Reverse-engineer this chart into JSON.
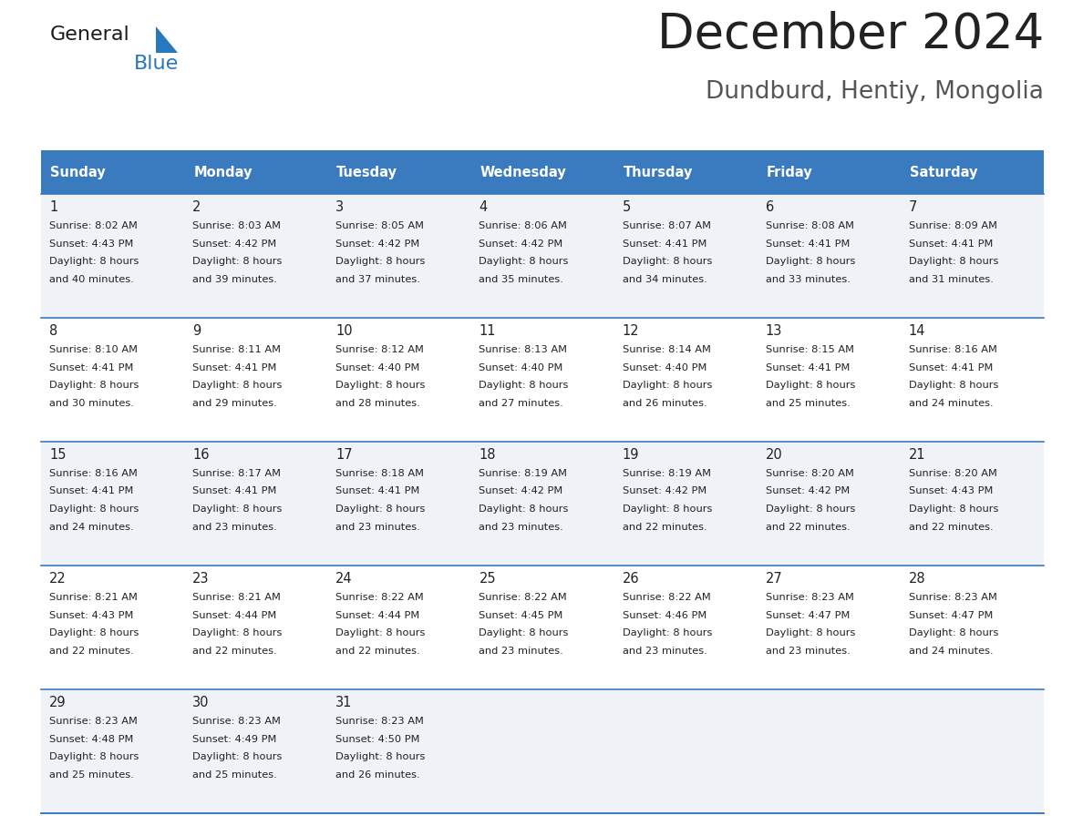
{
  "title": "December 2024",
  "subtitle": "Dundburd, Hentiy, Mongolia",
  "header_color": "#3a7abf",
  "header_text_color": "#ffffff",
  "days_of_week": [
    "Sunday",
    "Monday",
    "Tuesday",
    "Wednesday",
    "Thursday",
    "Friday",
    "Saturday"
  ],
  "bg_color_even": "#eff3f8",
  "bg_color_odd": "#ffffff",
  "divider_color": "#3a7abf",
  "cell_text_color": "#222222",
  "title_color": "#222222",
  "subtitle_color": "#555555",
  "logo_general_color": "#1a1a1a",
  "logo_blue_color": "#2878be",
  "calendar_data": [
    [
      {
        "day": 1,
        "sunrise": "8:02 AM",
        "sunset": "4:43 PM",
        "daylight": "8 hours and 40 minutes."
      },
      {
        "day": 2,
        "sunrise": "8:03 AM",
        "sunset": "4:42 PM",
        "daylight": "8 hours and 39 minutes."
      },
      {
        "day": 3,
        "sunrise": "8:05 AM",
        "sunset": "4:42 PM",
        "daylight": "8 hours and 37 minutes."
      },
      {
        "day": 4,
        "sunrise": "8:06 AM",
        "sunset": "4:42 PM",
        "daylight": "8 hours and 35 minutes."
      },
      {
        "day": 5,
        "sunrise": "8:07 AM",
        "sunset": "4:41 PM",
        "daylight": "8 hours and 34 minutes."
      },
      {
        "day": 6,
        "sunrise": "8:08 AM",
        "sunset": "4:41 PM",
        "daylight": "8 hours and 33 minutes."
      },
      {
        "day": 7,
        "sunrise": "8:09 AM",
        "sunset": "4:41 PM",
        "daylight": "8 hours and 31 minutes."
      }
    ],
    [
      {
        "day": 8,
        "sunrise": "8:10 AM",
        "sunset": "4:41 PM",
        "daylight": "8 hours and 30 minutes."
      },
      {
        "day": 9,
        "sunrise": "8:11 AM",
        "sunset": "4:41 PM",
        "daylight": "8 hours and 29 minutes."
      },
      {
        "day": 10,
        "sunrise": "8:12 AM",
        "sunset": "4:40 PM",
        "daylight": "8 hours and 28 minutes."
      },
      {
        "day": 11,
        "sunrise": "8:13 AM",
        "sunset": "4:40 PM",
        "daylight": "8 hours and 27 minutes."
      },
      {
        "day": 12,
        "sunrise": "8:14 AM",
        "sunset": "4:40 PM",
        "daylight": "8 hours and 26 minutes."
      },
      {
        "day": 13,
        "sunrise": "8:15 AM",
        "sunset": "4:41 PM",
        "daylight": "8 hours and 25 minutes."
      },
      {
        "day": 14,
        "sunrise": "8:16 AM",
        "sunset": "4:41 PM",
        "daylight": "8 hours and 24 minutes."
      }
    ],
    [
      {
        "day": 15,
        "sunrise": "8:16 AM",
        "sunset": "4:41 PM",
        "daylight": "8 hours and 24 minutes."
      },
      {
        "day": 16,
        "sunrise": "8:17 AM",
        "sunset": "4:41 PM",
        "daylight": "8 hours and 23 minutes."
      },
      {
        "day": 17,
        "sunrise": "8:18 AM",
        "sunset": "4:41 PM",
        "daylight": "8 hours and 23 minutes."
      },
      {
        "day": 18,
        "sunrise": "8:19 AM",
        "sunset": "4:42 PM",
        "daylight": "8 hours and 23 minutes."
      },
      {
        "day": 19,
        "sunrise": "8:19 AM",
        "sunset": "4:42 PM",
        "daylight": "8 hours and 22 minutes."
      },
      {
        "day": 20,
        "sunrise": "8:20 AM",
        "sunset": "4:42 PM",
        "daylight": "8 hours and 22 minutes."
      },
      {
        "day": 21,
        "sunrise": "8:20 AM",
        "sunset": "4:43 PM",
        "daylight": "8 hours and 22 minutes."
      }
    ],
    [
      {
        "day": 22,
        "sunrise": "8:21 AM",
        "sunset": "4:43 PM",
        "daylight": "8 hours and 22 minutes."
      },
      {
        "day": 23,
        "sunrise": "8:21 AM",
        "sunset": "4:44 PM",
        "daylight": "8 hours and 22 minutes."
      },
      {
        "day": 24,
        "sunrise": "8:22 AM",
        "sunset": "4:44 PM",
        "daylight": "8 hours and 22 minutes."
      },
      {
        "day": 25,
        "sunrise": "8:22 AM",
        "sunset": "4:45 PM",
        "daylight": "8 hours and 23 minutes."
      },
      {
        "day": 26,
        "sunrise": "8:22 AM",
        "sunset": "4:46 PM",
        "daylight": "8 hours and 23 minutes."
      },
      {
        "day": 27,
        "sunrise": "8:23 AM",
        "sunset": "4:47 PM",
        "daylight": "8 hours and 23 minutes."
      },
      {
        "day": 28,
        "sunrise": "8:23 AM",
        "sunset": "4:47 PM",
        "daylight": "8 hours and 24 minutes."
      }
    ],
    [
      {
        "day": 29,
        "sunrise": "8:23 AM",
        "sunset": "4:48 PM",
        "daylight": "8 hours and 25 minutes."
      },
      {
        "day": 30,
        "sunrise": "8:23 AM",
        "sunset": "4:49 PM",
        "daylight": "8 hours and 25 minutes."
      },
      {
        "day": 31,
        "sunrise": "8:23 AM",
        "sunset": "4:50 PM",
        "daylight": "8 hours and 26 minutes."
      },
      null,
      null,
      null,
      null
    ]
  ]
}
